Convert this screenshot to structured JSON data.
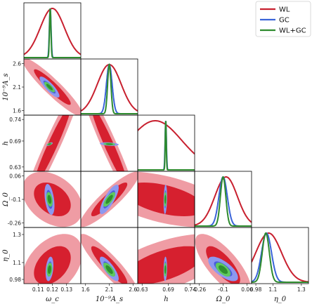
{
  "chart_data": {
    "type": "corner",
    "legend": {
      "placement": "top-right",
      "entries": [
        {
          "name": "WL",
          "color": "#c8202f"
        },
        {
          "name": "GC",
          "color": "#3a64d8"
        },
        {
          "name": "WL+GC",
          "color": "#2e8b2e"
        }
      ]
    },
    "parameters": [
      {
        "key": "wc",
        "label": "ω_c",
        "range": [
          0.1,
          0.14
        ],
        "ticks": [
          "0.11",
          "0.12",
          "0.13"
        ],
        "tick_values": [
          0.11,
          0.12,
          0.13
        ],
        "fiducial": 0.118
      },
      {
        "key": "As",
        "label": "10⁻⁹A_s",
        "range": [
          1.5,
          2.7
        ],
        "ticks": [
          "1.6",
          "2.1",
          "2.6"
        ],
        "tick_values": [
          1.6,
          2.1,
          2.6
        ],
        "fiducial": 2.1
      },
      {
        "key": "h",
        "label": "h",
        "range": [
          0.62,
          0.75
        ],
        "ticks": [
          "0.63",
          "0.69",
          "0.74"
        ],
        "tick_values": [
          0.63,
          0.69,
          0.74
        ],
        "fiducial": 0.68
      },
      {
        "key": "Om0",
        "label": "Ω_0",
        "range": [
          -0.29,
          0.09
        ],
        "ticks": [
          "-0.26",
          "-0.1",
          "0.06"
        ],
        "tick_values": [
          -0.26,
          -0.1,
          0.06
        ],
        "fiducial": -0.1
      },
      {
        "key": "eta0",
        "label": "η_0",
        "range": [
          0.95,
          1.35
        ],
        "ticks": [
          "0.98",
          "1.1",
          "1.3"
        ],
        "tick_values": [
          0.98,
          1.1,
          1.3
        ],
        "fiducial": 1.05
      }
    ],
    "row_ticks": [
      {
        "param": 1,
        "labels": [
          "2.6",
          "2.1",
          "1.6"
        ],
        "values": [
          2.6,
          2.1,
          1.6
        ]
      },
      {
        "param": 2,
        "labels": [
          "0.74",
          "0.69",
          "0.63"
        ],
        "values": [
          0.74,
          0.69,
          0.63
        ]
      },
      {
        "param": 3,
        "labels": [
          "0.06",
          "-0.1",
          "-0.26"
        ],
        "values": [
          0.06,
          -0.1,
          -0.26
        ]
      },
      {
        "param": 4,
        "labels": [
          "1.3",
          "1.1",
          "0.98"
        ],
        "values": [
          1.3,
          1.1,
          0.98
        ]
      }
    ],
    "marginals": [
      {
        "param": 0,
        "WL": {
          "mu": 0.12,
          "sigma": 0.0085
        },
        "GC": {
          "mu": 0.1185,
          "sigma": 0.0006
        },
        "WLGC": {
          "mu": 0.1185,
          "sigma": 0.0005
        }
      },
      {
        "param": 1,
        "WL": {
          "mu": 2.1,
          "sigma": 0.25
        },
        "GC": {
          "mu": 2.1,
          "sigma": 0.06
        },
        "WLGC": {
          "mu": 2.1,
          "sigma": 0.035
        }
      },
      {
        "param": 2,
        "WL": {
          "mu": 0.66,
          "sigma": 0.06
        },
        "GC": {
          "mu": 0.684,
          "sigma": 0.0015
        },
        "WLGC": {
          "mu": 0.684,
          "sigma": 0.0012
        }
      },
      {
        "param": 3,
        "WL": {
          "mu": -0.08,
          "sigma": 0.075
        },
        "GC": {
          "mu": -0.1,
          "sigma": 0.028
        },
        "WLGC": {
          "mu": -0.1,
          "sigma": 0.018
        }
      },
      {
        "param": 4,
        "WL": {
          "mu": 1.07,
          "sigma": 0.09
        },
        "GC": {
          "mu": 1.055,
          "sigma": 0.035
        },
        "WLGC": {
          "mu": 1.05,
          "sigma": 0.025
        }
      }
    ],
    "contours": [
      {
        "x": 0,
        "y": 1,
        "WL": {
          "mx": 0.12,
          "my": 2.1,
          "sx": 0.0085,
          "sy": 0.25,
          "rho": -0.93
        },
        "GC": {
          "mx": 0.118,
          "my": 2.1,
          "sx": 0.0028,
          "sy": 0.09,
          "rho": -0.85
        },
        "WLGC": {
          "mx": 0.118,
          "my": 2.1,
          "sx": 0.0015,
          "sy": 0.045,
          "rho": -0.8
        }
      },
      {
        "x": 0,
        "y": 2,
        "WL": {
          "mx": 0.12,
          "my": 0.68,
          "sx": 0.0085,
          "sy": 0.06,
          "rho": 0.96
        },
        "GC": {
          "mx": 0.118,
          "my": 0.683,
          "sx": 0.0009,
          "sy": 0.0016,
          "rho": 0.6
        },
        "WLGC": {
          "mx": 0.118,
          "my": 0.683,
          "sx": 0.0007,
          "sy": 0.0012,
          "rho": 0.5
        }
      },
      {
        "x": 0,
        "y": 3,
        "WL": {
          "mx": 0.12,
          "my": -0.1,
          "sx": 0.0085,
          "sy": 0.075,
          "rho": -0.35
        },
        "GC": {
          "mx": 0.118,
          "my": -0.1,
          "sx": 0.0014,
          "sy": 0.042,
          "rho": -0.4
        },
        "WLGC": {
          "mx": 0.118,
          "my": -0.1,
          "sx": 0.0009,
          "sy": 0.02,
          "rho": -0.3
        }
      },
      {
        "x": 0,
        "y": 4,
        "WL": {
          "mx": 0.12,
          "my": 1.08,
          "sx": 0.0085,
          "sy": 0.09,
          "rho": 0.4
        },
        "GC": {
          "mx": 0.118,
          "my": 1.055,
          "sx": 0.0011,
          "sy": 0.035,
          "rho": 0.3
        },
        "WLGC": {
          "mx": 0.118,
          "my": 1.05,
          "sx": 0.0008,
          "sy": 0.02,
          "rho": 0.2
        }
      },
      {
        "x": 1,
        "y": 2,
        "WL": {
          "mx": 2.1,
          "my": 0.68,
          "sx": 0.25,
          "sy": 0.06,
          "rho": -0.96
        },
        "GC": {
          "mx": 2.1,
          "my": 0.683,
          "sx": 0.08,
          "sy": 0.0016,
          "rho": -0.3
        },
        "WLGC": {
          "mx": 2.1,
          "my": 0.683,
          "sx": 0.05,
          "sy": 0.0012,
          "rho": -0.2
        }
      },
      {
        "x": 1,
        "y": 3,
        "WL": {
          "mx": 2.1,
          "my": -0.1,
          "sx": 0.25,
          "sy": 0.075,
          "rho": 0.9
        },
        "GC": {
          "mx": 2.1,
          "my": -0.1,
          "sx": 0.08,
          "sy": 0.04,
          "rho": 0.8
        },
        "WLGC": {
          "mx": 2.1,
          "my": -0.1,
          "sx": 0.05,
          "sy": 0.02,
          "rho": 0.75
        }
      },
      {
        "x": 1,
        "y": 4,
        "WL": {
          "mx": 2.1,
          "my": 1.08,
          "sx": 0.25,
          "sy": 0.09,
          "rho": -0.9
        },
        "GC": {
          "mx": 2.1,
          "my": 1.055,
          "sx": 0.08,
          "sy": 0.035,
          "rho": -0.8
        },
        "WLGC": {
          "mx": 2.1,
          "my": 1.05,
          "sx": 0.05,
          "sy": 0.02,
          "rho": -0.7
        }
      },
      {
        "x": 2,
        "y": 3,
        "WL": {
          "mx": 0.68,
          "my": -0.1,
          "sx": 0.06,
          "sy": 0.075,
          "rho": -0.5
        },
        "GC": {
          "mx": 0.683,
          "my": -0.1,
          "sx": 0.0016,
          "sy": 0.04,
          "rho": 0.2
        },
        "WLGC": {
          "mx": 0.683,
          "my": -0.1,
          "sx": 0.0012,
          "sy": 0.02,
          "rho": 0.1
        }
      },
      {
        "x": 2,
        "y": 4,
        "WL": {
          "mx": 0.68,
          "my": 1.08,
          "sx": 0.06,
          "sy": 0.09,
          "rho": 0.6
        },
        "GC": {
          "mx": 0.683,
          "my": 1.055,
          "sx": 0.0016,
          "sy": 0.035,
          "rho": 0.1
        },
        "WLGC": {
          "mx": 0.683,
          "my": 1.05,
          "sx": 0.0012,
          "sy": 0.02,
          "rho": 0.1
        }
      },
      {
        "x": 3,
        "y": 4,
        "WL": {
          "mx": -0.1,
          "my": 1.08,
          "sx": 0.075,
          "sy": 0.09,
          "rho": -0.75
        },
        "GC": {
          "mx": -0.1,
          "my": 1.055,
          "sx": 0.04,
          "sy": 0.035,
          "rho": -0.7
        },
        "WLGC": {
          "mx": -0.1,
          "my": 1.05,
          "sx": 0.02,
          "sy": 0.02,
          "rho": -0.6
        }
      }
    ],
    "colors": {
      "WL_line": "#c8202f",
      "WL_2sigma": "#ef9ca4",
      "WL_1sigma": "#d6202f",
      "GC_line": "#3a64d8",
      "GC_2sigma": "#8c98f0",
      "GC_1sigma": "#4a5ce0",
      "WLGC_line": "#2e8b2e",
      "WLGC_2sigma": "#5fc85f",
      "WLGC_1sigma": "#2f8f2f"
    }
  }
}
